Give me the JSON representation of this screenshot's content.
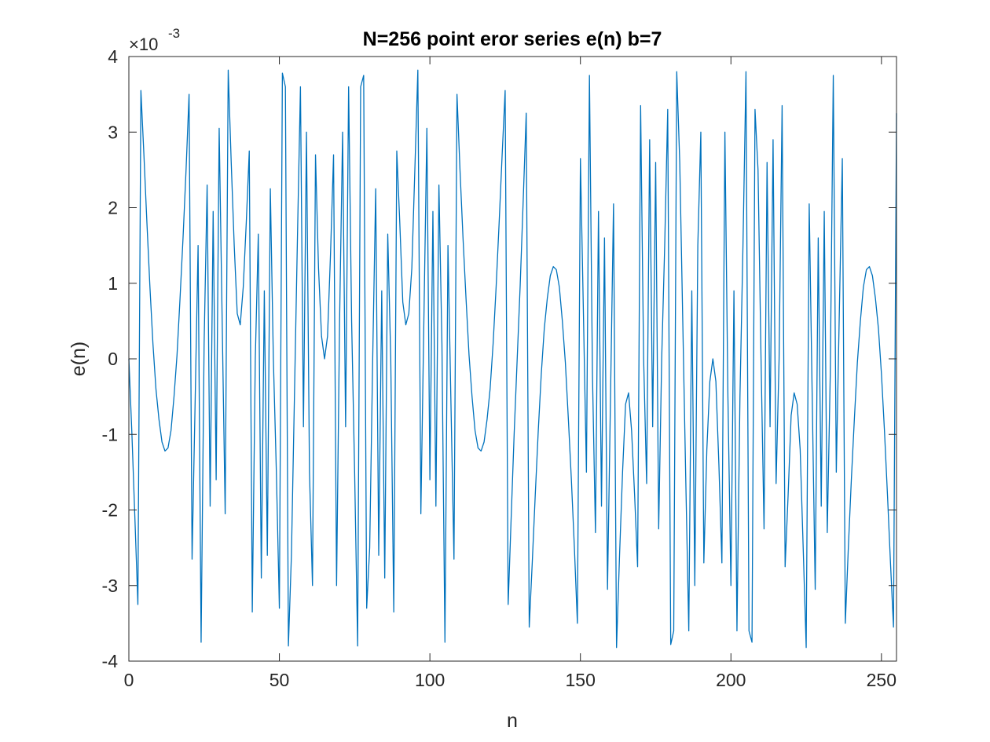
{
  "chart_data": {
    "type": "line",
    "title": "N=256 point eror series e(n) b=7",
    "xlabel": "n",
    "ylabel": "e(n)",
    "y_exponent_multiplier": "×10",
    "y_exponent_power": "-3",
    "xlim": [
      0,
      255
    ],
    "ylim": [
      -4,
      4
    ],
    "xticks": [
      0,
      50,
      100,
      150,
      200,
      250
    ],
    "xtick_labels": [
      "0",
      "50",
      "100",
      "150",
      "200",
      "250"
    ],
    "yticks": [
      -4,
      -3,
      -2,
      -1,
      0,
      1,
      2,
      3,
      4
    ],
    "ytick_labels": [
      "-4",
      "-3",
      "-2",
      "-1",
      "0",
      "1",
      "2",
      "3",
      "4"
    ],
    "grid": false,
    "series": [
      {
        "color": "#0072bd",
        "y_units": "×10^-3",
        "x_start": 0,
        "x_step": 1,
        "values": [
          0.0,
          -0.98,
          -2.1,
          -3.25,
          3.55,
          2.7,
          1.8,
          0.95,
          0.2,
          -0.4,
          -0.8,
          -1.1,
          -1.22,
          -1.18,
          -0.95,
          -0.5,
          0.05,
          0.8,
          1.6,
          2.5,
          3.5,
          -2.65,
          -0.6,
          1.5,
          -3.75,
          0.2,
          2.3,
          -1.95,
          1.95,
          -1.6,
          3.05,
          0.5,
          -2.05,
          3.82,
          2.6,
          1.5,
          0.6,
          0.45,
          0.95,
          1.8,
          2.75,
          -3.35,
          0.0,
          1.65,
          -2.9,
          0.9,
          -2.6,
          2.25,
          0.0,
          -1.5,
          -3.3,
          3.78,
          3.6,
          -3.8,
          -2.6,
          -0.5,
          1.6,
          3.6,
          -0.9,
          3.0,
          -1.5,
          -3.0,
          2.7,
          1.2,
          0.3,
          0.0,
          0.3,
          1.4,
          2.7,
          -3.0,
          0.5,
          3.0,
          -0.9,
          3.6,
          0.5,
          -1.5,
          -3.8,
          3.6,
          3.75,
          -3.3,
          -2.5,
          0.0,
          2.25,
          -2.6,
          0.9,
          -2.9,
          1.65,
          0.0,
          -3.35,
          2.75,
          1.8,
          0.75,
          0.45,
          0.6,
          1.2,
          2.5,
          3.82,
          -2.05,
          0.5,
          3.05,
          -1.6,
          1.95,
          -1.95,
          2.3,
          0.2,
          -3.75,
          1.5,
          -0.6,
          -2.65,
          3.5,
          2.5,
          1.6,
          0.8,
          0.05,
          -0.5,
          -0.95,
          -1.18,
          -1.22,
          -1.1,
          -0.8,
          -0.4,
          0.2,
          0.95,
          1.8,
          2.7,
          3.55,
          -3.25,
          -2.1,
          -0.98,
          0.0,
          0.98,
          2.1,
          3.25,
          -3.55,
          -2.7,
          -1.8,
          -0.95,
          -0.2,
          0.4,
          0.8,
          1.1,
          1.22,
          1.18,
          0.95,
          0.5,
          -0.05,
          -0.8,
          -1.6,
          -2.5,
          -3.5,
          2.65,
          0.6,
          -1.5,
          3.75,
          -0.2,
          -2.3,
          1.95,
          -1.95,
          1.6,
          -3.05,
          -0.5,
          2.05,
          -3.82,
          -2.6,
          -1.5,
          -0.6,
          -0.45,
          -0.95,
          -1.8,
          -2.75,
          3.35,
          0.0,
          -1.65,
          2.9,
          -0.9,
          2.6,
          -2.25,
          0.0,
          1.5,
          3.3,
          -3.78,
          -3.6,
          3.8,
          2.6,
          0.5,
          -1.6,
          -3.6,
          0.9,
          -3.0,
          1.5,
          3.0,
          -2.7,
          -1.2,
          -0.3,
          0.0,
          -0.3,
          -1.4,
          -2.7,
          3.0,
          -0.5,
          -3.0,
          0.9,
          -3.6,
          -0.5,
          1.5,
          3.8,
          -3.6,
          -3.75,
          3.3,
          2.5,
          0.0,
          -2.25,
          2.6,
          -0.9,
          2.9,
          -1.65,
          0.0,
          3.35,
          -2.75,
          -1.8,
          -0.75,
          -0.45,
          -0.6,
          -1.2,
          -2.5,
          -3.82,
          2.05,
          -0.5,
          -3.05,
          1.6,
          -1.95,
          1.95,
          -2.3,
          -0.2,
          3.75,
          -1.5,
          0.6,
          2.65,
          -3.5,
          -2.5,
          -1.6,
          -0.8,
          -0.05,
          0.5,
          0.95,
          1.18,
          1.22,
          1.1,
          0.8,
          0.4,
          -0.2,
          -0.95,
          -1.8,
          -2.7,
          -3.55,
          3.25
        ]
      }
    ]
  }
}
